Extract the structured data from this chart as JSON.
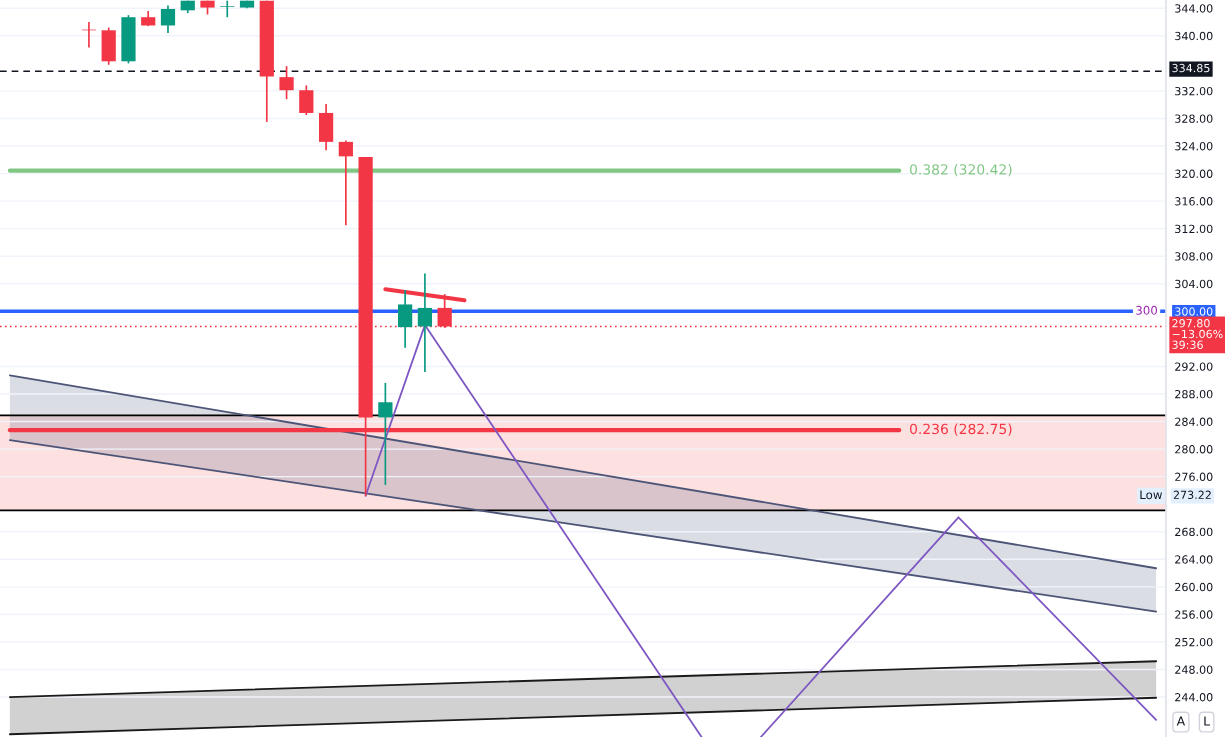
{
  "chart_data": {
    "type": "candlestick",
    "categories": [
      null,
      null,
      null,
      null,
      null,
      null,
      null,
      null,
      null,
      null,
      null,
      null,
      null,
      null,
      null,
      null,
      null,
      null,
      null,
      null,
      null,
      null,
      null,
      null,
      null,
      null,
      null,
      null,
      null,
      null,
      null,
      null,
      null,
      null,
      null,
      null,
      null,
      null,
      null,
      null,
      null,
      null,
      null,
      null,
      null,
      null,
      null,
      null,
      null,
      null,
      null,
      null,
      null,
      null,
      null,
      null,
      null,
      null,
      null
    ],
    "ohlc": [
      null,
      null,
      null,
      null,
      [
        340.9,
        342.0,
        338.3,
        340.8
      ],
      [
        340.8,
        341.2,
        335.8,
        336.3
      ],
      [
        336.3,
        343.0,
        336.0,
        342.7
      ],
      [
        342.7,
        343.6,
        341.4,
        341.5
      ],
      [
        341.5,
        344.4,
        340.4,
        343.9
      ],
      [
        343.7,
        345.1,
        343.3,
        345.1
      ],
      [
        345.1,
        345.1,
        343.1,
        344.1
      ],
      [
        344.2,
        345.1,
        342.7,
        344.3
      ],
      [
        344.1,
        345.1,
        344.0,
        345.1
      ],
      [
        345.1,
        345.1,
        327.5,
        334.1
      ],
      [
        334.0,
        335.6,
        330.8,
        332.1
      ],
      [
        332.1,
        332.8,
        328.5,
        328.8
      ],
      [
        328.8,
        330.1,
        323.4,
        324.6
      ],
      [
        324.6,
        324.8,
        312.5,
        322.5
      ],
      [
        322.4,
        322.4,
        273.22,
        284.6
      ],
      [
        284.6,
        289.6,
        274.8,
        286.8
      ],
      [
        297.7,
        303.1,
        294.7,
        301.0
      ],
      [
        297.8,
        305.5,
        291.2,
        300.5
      ],
      [
        300.5,
        302.5,
        297.6,
        297.8
      ],
      null,
      null,
      null,
      null,
      null,
      null,
      null,
      null,
      null,
      null,
      null,
      null,
      null,
      null,
      null,
      null,
      null,
      null,
      null,
      null,
      null,
      null,
      null,
      null,
      null,
      null,
      null,
      null,
      null,
      null,
      null,
      null,
      null,
      null,
      null,
      null
    ],
    "colors": [
      null,
      null,
      null,
      null,
      "#f23645",
      "#f23645",
      "#089981",
      "#f23645",
      "#089981",
      "#089981",
      "#f23645",
      "#089981",
      "#089981",
      "#f23645",
      "#f23645",
      "#f23645",
      "#f23645",
      "#f23645",
      "#f23645",
      "#089981",
      "#089981",
      "#089981",
      "#f23645",
      null,
      null,
      null,
      null,
      null,
      null,
      null,
      null,
      null,
      null,
      null,
      null,
      null,
      null,
      null,
      null,
      null,
      null,
      null,
      null,
      null,
      null,
      null,
      null,
      null,
      null,
      null,
      null,
      null,
      null,
      null,
      null,
      null,
      null,
      null,
      null
    ],
    "series": [
      {
        "type": "line",
        "color": "#4c5577",
        "upper": [
          290.7,
          null,
          null,
          null,
          null,
          null,
          null,
          null,
          null,
          null,
          null,
          null,
          null,
          null,
          null,
          null,
          null,
          null,
          null,
          null,
          null,
          null,
          null,
          null,
          null,
          null,
          null,
          null,
          null,
          null,
          null,
          null,
          null,
          null,
          null,
          null,
          null,
          null,
          null,
          null,
          null,
          null,
          null,
          null,
          null,
          null,
          null,
          null,
          null,
          null,
          null,
          null,
          null,
          null,
          null,
          null,
          null,
          null,
          262.7
        ],
        "values": [
          290.7,
          null,
          null,
          null,
          null,
          null,
          null,
          null,
          null,
          null,
          null,
          null,
          null,
          null,
          null,
          null,
          null,
          null,
          null,
          null,
          null,
          null,
          null,
          null,
          null,
          null,
          null,
          null,
          null,
          null,
          null,
          null,
          null,
          null,
          null,
          null,
          null,
          null,
          null,
          null,
          null,
          null,
          null,
          null,
          null,
          null,
          null,
          null,
          null,
          null,
          null,
          null,
          null,
          null,
          null,
          null,
          null,
          null,
          262.7
        ],
        "lower": [
          281.3,
          null,
          null,
          null,
          null,
          null,
          null,
          null,
          null,
          null,
          null,
          null,
          null,
          null,
          null,
          null,
          null,
          null,
          null,
          null,
          null,
          null,
          null,
          null,
          null,
          null,
          null,
          null,
          null,
          null,
          null,
          null,
          null,
          null,
          null,
          null,
          null,
          null,
          null,
          null,
          null,
          null,
          null,
          null,
          null,
          null,
          null,
          null,
          null,
          null,
          null,
          null,
          null,
          null,
          null,
          null,
          null,
          null,
          256.4
        ]
      },
      {
        "type": "line",
        "color": "#4c5577",
        "values": [
          281.3,
          null,
          null,
          null,
          null,
          null,
          null,
          null,
          null,
          null,
          null,
          null,
          null,
          null,
          null,
          null,
          null,
          null,
          null,
          null,
          null,
          null,
          null,
          null,
          null,
          null,
          null,
          null,
          null,
          null,
          null,
          null,
          null,
          null,
          null,
          null,
          null,
          null,
          null,
          null,
          null,
          null,
          null,
          null,
          null,
          null,
          null,
          null,
          null,
          null,
          null,
          null,
          null,
          null,
          null,
          null,
          null,
          null,
          256.4
        ]
      },
      {
        "type": "line",
        "color": "#1a1a1a",
        "values": [
          238.6,
          null,
          null,
          null,
          null,
          null,
          null,
          null,
          null,
          null,
          null,
          null,
          null,
          null,
          null,
          null,
          null,
          null,
          null,
          null,
          null,
          null,
          null,
          null,
          null,
          null,
          null,
          null,
          null,
          null,
          null,
          null,
          null,
          null,
          null,
          null,
          null,
          null,
          null,
          null,
          null,
          null,
          null,
          null,
          null,
          null,
          null,
          null,
          null,
          null,
          null,
          null,
          null,
          null,
          null,
          null,
          null,
          null,
          243.9
        ]
      },
      {
        "type": "line",
        "color": "#1a1a1a",
        "upper": [
          244.0,
          null,
          null,
          null,
          null,
          null,
          null,
          null,
          null,
          null,
          null,
          null,
          null,
          null,
          null,
          null,
          null,
          null,
          null,
          null,
          null,
          null,
          null,
          null,
          null,
          null,
          null,
          null,
          null,
          null,
          null,
          null,
          null,
          null,
          null,
          null,
          null,
          null,
          null,
          null,
          null,
          null,
          null,
          null,
          null,
          null,
          null,
          null,
          null,
          null,
          null,
          null,
          null,
          null,
          null,
          null,
          null,
          null,
          249.2
        ],
        "values": [
          244.0,
          null,
          null,
          null,
          null,
          null,
          null,
          null,
          null,
          null,
          null,
          null,
          null,
          null,
          null,
          null,
          null,
          null,
          null,
          null,
          null,
          null,
          null,
          null,
          null,
          null,
          null,
          null,
          null,
          null,
          null,
          null,
          null,
          null,
          null,
          null,
          null,
          null,
          null,
          null,
          null,
          null,
          null,
          null,
          null,
          null,
          null,
          null,
          null,
          null,
          null,
          null,
          null,
          null,
          null,
          null,
          null,
          null,
          249.2
        ],
        "lower": [
          238.6,
          null,
          null,
          null,
          null,
          null,
          null,
          null,
          null,
          null,
          null,
          null,
          null,
          null,
          null,
          null,
          null,
          null,
          null,
          null,
          null,
          null,
          null,
          null,
          null,
          null,
          null,
          null,
          null,
          null,
          null,
          null,
          null,
          null,
          null,
          null,
          null,
          null,
          null,
          null,
          null,
          null,
          null,
          null,
          null,
          null,
          null,
          null,
          null,
          null,
          null,
          null,
          null,
          null,
          null,
          null,
          null,
          null,
          243.9
        ]
      },
      {
        "type": "line",
        "name": "0.382 (320.42)",
        "color": "#81c784",
        "values": [
          320.42,
          null,
          null,
          null,
          null,
          null,
          null,
          null,
          null,
          null,
          null,
          null,
          null,
          null,
          null,
          null,
          null,
          null,
          null,
          null,
          null,
          null,
          null,
          null,
          null,
          null,
          null,
          null,
          null,
          null,
          null,
          null,
          null,
          null,
          null,
          null,
          null,
          null,
          null,
          null,
          null,
          null,
          null,
          null,
          null,
          320.42,
          null,
          null,
          null,
          null,
          null,
          null,
          null,
          null,
          null,
          null,
          null,
          null,
          null
        ]
      },
      {
        "type": "line",
        "name": "0.236 (282.75)",
        "color": "#f23645",
        "values": [
          282.75,
          null,
          null,
          null,
          null,
          null,
          null,
          null,
          null,
          null,
          null,
          null,
          null,
          null,
          null,
          null,
          null,
          null,
          null,
          null,
          null,
          null,
          null,
          null,
          null,
          null,
          null,
          null,
          null,
          null,
          null,
          null,
          null,
          null,
          null,
          null,
          null,
          null,
          null,
          null,
          null,
          null,
          null,
          null,
          null,
          282.75,
          null,
          null,
          null,
          null,
          null,
          null,
          null,
          null,
          null,
          null,
          null,
          null,
          null
        ]
      },
      {
        "type": "line",
        "color": "#f23645",
        "values": [
          null,
          null,
          null,
          null,
          null,
          null,
          null,
          null,
          null,
          null,
          null,
          null,
          null,
          null,
          null,
          null,
          null,
          null,
          null,
          303.2,
          null,
          null,
          null,
          301.6,
          null,
          null,
          null,
          null,
          null,
          null,
          null,
          null,
          null,
          null,
          null,
          null,
          null,
          null,
          null,
          null,
          null,
          null,
          null,
          null,
          null,
          null,
          null,
          null,
          null,
          null,
          null,
          null,
          null,
          null,
          null,
          null,
          null,
          null,
          null
        ]
      },
      {
        "type": "line",
        "color": "#7e57c2",
        "values": [
          null,
          null,
          null,
          null,
          null,
          null,
          null,
          null,
          null,
          null,
          null,
          null,
          null,
          null,
          null,
          null,
          null,
          null,
          273.22,
          null,
          null,
          298.0,
          null,
          null,
          null,
          null,
          null,
          null,
          null,
          null,
          null,
          null,
          null,
          null,
          null,
          238.2,
          null,
          null,
          null,
          null,
          null,
          null,
          null,
          null,
          null,
          null,
          null,
          null,
          null,
          null,
          null,
          null,
          null,
          null,
          null,
          null,
          null,
          null,
          null
        ]
      },
      {
        "type": "line",
        "color": "#7e57c2",
        "values": [
          null,
          null,
          null,
          null,
          null,
          null,
          null,
          null,
          null,
          null,
          null,
          null,
          null,
          null,
          null,
          null,
          null,
          null,
          null,
          null,
          null,
          null,
          null,
          null,
          null,
          null,
          null,
          null,
          null,
          null,
          null,
          null,
          null,
          null,
          null,
          null,
          null,
          null,
          238.2,
          null,
          null,
          null,
          null,
          null,
          null,
          null,
          null,
          null,
          270.1,
          null,
          null,
          null,
          null,
          null,
          null,
          null,
          null,
          null,
          240.7
        ]
      }
    ],
    "bands": [
      {
        "axis": "y",
        "from": 271.1,
        "to": 284.9,
        "color": "#fde0e0"
      }
    ],
    "ref_lines": [
      {
        "axis": "y",
        "value": 334.85,
        "label": "334.85",
        "color": "#131722",
        "line_style": "dashed"
      },
      {
        "axis": "y",
        "value": 300,
        "label": "300",
        "color": "#2962ff"
      },
      {
        "axis": "y",
        "value": 297.8,
        "label": "297.80\n−13.06%\n39:36",
        "color": "#f23645",
        "line_style": "dotted"
      },
      {
        "axis": "y",
        "value": 284.9,
        "color": "#000000"
      },
      {
        "axis": "y",
        "value": 271.1,
        "color": "#000000"
      }
    ],
    "annotations": [
      "Low",
      "273.22",
      "A",
      "L"
    ],
    "ylim": [
      238.2,
      345.2
    ],
    "yticks": [
      {
        "value": 244,
        "label": "244.00"
      },
      {
        "value": 248,
        "label": "248.00"
      },
      {
        "value": 252,
        "label": "252.00"
      },
      {
        "value": 256,
        "label": "256.00"
      },
      {
        "value": 260,
        "label": "260.00"
      },
      {
        "value": 264,
        "label": "264.00"
      },
      {
        "value": 268,
        "label": "268.00"
      },
      {
        "value": 276,
        "label": "276.00"
      },
      {
        "value": 280,
        "label": "280.00"
      },
      {
        "value": 284,
        "label": "284.00"
      },
      {
        "value": 288,
        "label": "288.00"
      },
      {
        "value": 292,
        "label": "292.00"
      },
      {
        "value": 300,
        "label": "300.00"
      },
      {
        "value": 304,
        "label": "304.00"
      },
      {
        "value": 308,
        "label": "308.00"
      },
      {
        "value": 312,
        "label": "312.00"
      },
      {
        "value": 316,
        "label": "316.00"
      },
      {
        "value": 320,
        "label": "320.00"
      },
      {
        "value": 324,
        "label": "324.00"
      },
      {
        "value": 328,
        "label": "328.00"
      },
      {
        "value": 332,
        "label": "332.00"
      },
      {
        "value": 340,
        "label": "340.00"
      },
      {
        "value": 344,
        "label": "344.00"
      }
    ],
    "tick_labels": "y",
    "grid": "y"
  }
}
